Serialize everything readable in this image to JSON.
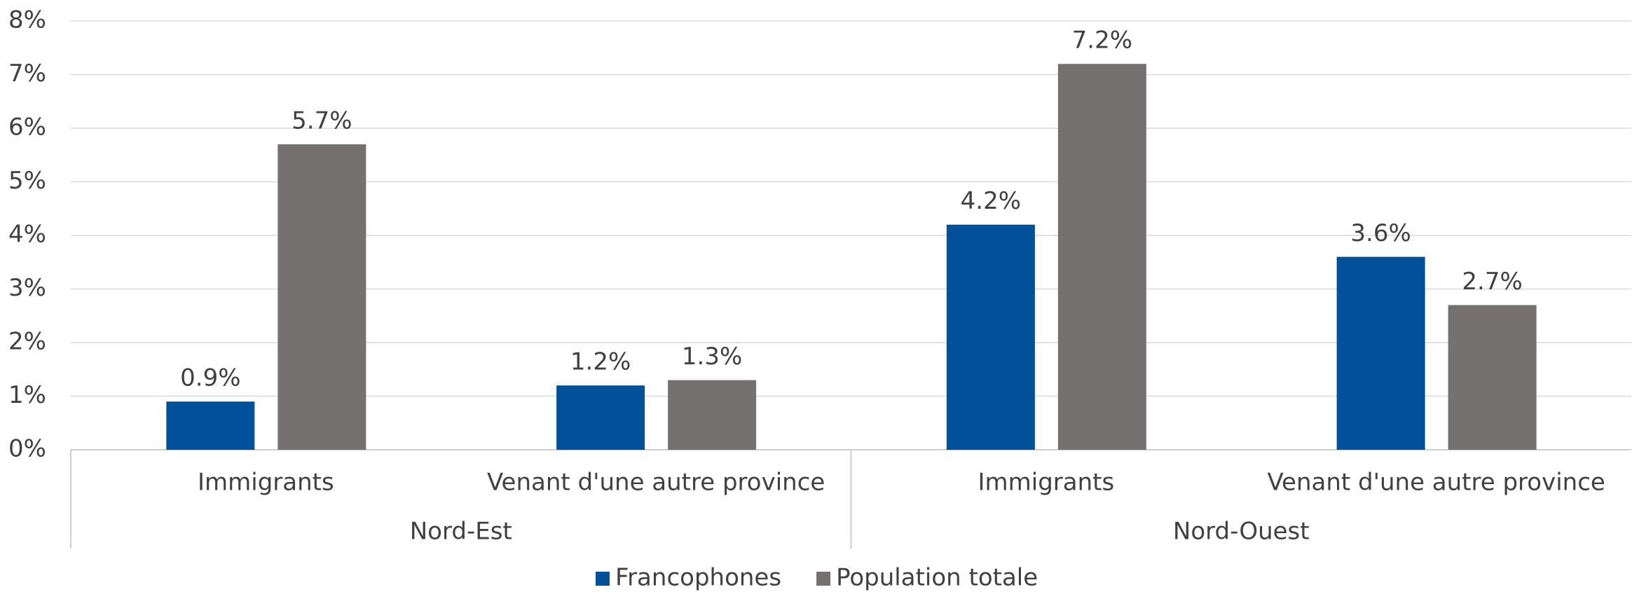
{
  "chart_data": {
    "type": "bar",
    "categories": [
      "Immigrants",
      "Venant d'une autre province",
      "Immigrants",
      "Venant d'une autre province"
    ],
    "groups": [
      "Nord-Est",
      "Nord-Ouest"
    ],
    "series": [
      {
        "name": "Francophones",
        "color": "#00509a",
        "values": [
          0.9,
          1.2,
          4.2,
          3.6
        ],
        "value_labels": [
          "0.9%",
          "1.2%",
          "4.2%",
          "3.6%"
        ]
      },
      {
        "name": "Population totale",
        "color": "#757170",
        "values": [
          5.7,
          1.3,
          7.2,
          2.7
        ],
        "value_labels": [
          "5.7%",
          "1.3%",
          "7.2%",
          "2.7%"
        ]
      }
    ],
    "ylim": [
      0,
      8
    ],
    "yticks": [
      {
        "value": 0,
        "label": "0%"
      },
      {
        "value": 1,
        "label": "1%"
      },
      {
        "value": 2,
        "label": "2%"
      },
      {
        "value": 3,
        "label": "3%"
      },
      {
        "value": 4,
        "label": "4%"
      },
      {
        "value": 5,
        "label": "5%"
      },
      {
        "value": 6,
        "label": "6%"
      },
      {
        "value": 7,
        "label": "7%"
      },
      {
        "value": 8,
        "label": "8%"
      }
    ],
    "grid": true,
    "legend": "bottom"
  }
}
